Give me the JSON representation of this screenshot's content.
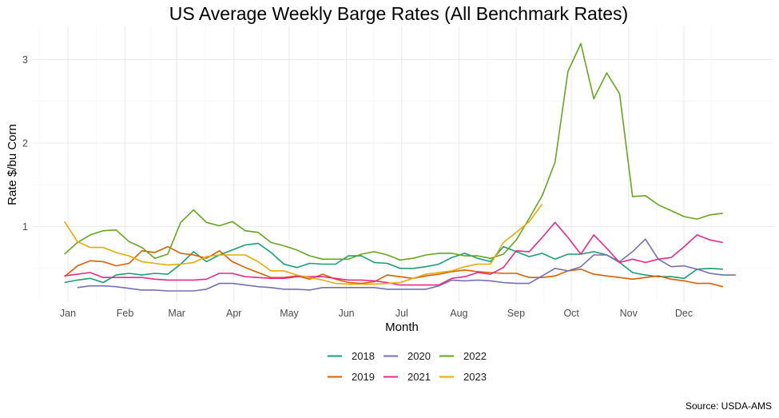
{
  "chart_data": {
    "type": "line",
    "title": "US Average Weekly Barge Rates (All Benchmark Rates)",
    "xlabel": "Month",
    "ylabel": "Rate $/bu Corn",
    "caption": "Source: USDA-AMS",
    "grid": true,
    "legend_position": "bottom",
    "x_unit": "day of year",
    "x": [
      0,
      7,
      14,
      21,
      28,
      35,
      42,
      49,
      56,
      63,
      70,
      77,
      84,
      91,
      98,
      105,
      112,
      119,
      126,
      133,
      140,
      147,
      154,
      161,
      168,
      175,
      182,
      189,
      196,
      203,
      210,
      217,
      224,
      231,
      238,
      245,
      252,
      259,
      266,
      273,
      280,
      287,
      294,
      301,
      308,
      315,
      322,
      329,
      336,
      343,
      350,
      357,
      364
    ],
    "xlim": [
      -20,
      384
    ],
    "ylim": [
      0.1,
      3.3
    ],
    "x_ticks": [
      {
        "label": "Jan",
        "day": 1
      },
      {
        "label": "Feb",
        "day": 32
      },
      {
        "label": "Mar",
        "day": 60
      },
      {
        "label": "Apr",
        "day": 91
      },
      {
        "label": "May",
        "day": 121
      },
      {
        "label": "Jun",
        "day": 152
      },
      {
        "label": "Jul",
        "day": 182
      },
      {
        "label": "Aug",
        "day": 213
      },
      {
        "label": "Sep",
        "day": 244
      },
      {
        "label": "Oct",
        "day": 274
      },
      {
        "label": "Nov",
        "day": 305
      },
      {
        "label": "Dec",
        "day": 335
      }
    ],
    "y_ticks": [
      {
        "label": "1",
        "value": 1
      },
      {
        "label": "2",
        "value": 2
      },
      {
        "label": "3",
        "value": 3
      }
    ],
    "y_minor": [
      0.5,
      1.5,
      2.5
    ],
    "series": [
      {
        "name": "2018",
        "color": "#1B9E77",
        "values": [
          0.33,
          0.36,
          0.38,
          0.33,
          0.42,
          0.44,
          0.42,
          0.44,
          0.43,
          0.55,
          0.7,
          0.58,
          0.66,
          0.72,
          0.78,
          0.8,
          0.69,
          0.55,
          0.51,
          0.56,
          0.55,
          0.55,
          0.65,
          0.65,
          0.57,
          0.56,
          0.5,
          0.5,
          0.52,
          0.55,
          0.63,
          0.68,
          0.62,
          0.58,
          0.76,
          0.7,
          0.64,
          0.68,
          0.61,
          0.67,
          0.67,
          0.7,
          0.66,
          0.57,
          0.45,
          0.42,
          0.4,
          0.4,
          0.38,
          0.49,
          0.5,
          0.49,
          null
        ]
      },
      {
        "name": "2019",
        "color": "#D95F02",
        "values": [
          0.4,
          0.53,
          0.59,
          0.58,
          0.53,
          0.56,
          0.71,
          0.69,
          0.76,
          0.68,
          0.66,
          0.62,
          0.71,
          0.58,
          0.51,
          0.45,
          0.39,
          0.39,
          0.41,
          0.37,
          0.43,
          0.37,
          0.33,
          0.32,
          0.34,
          0.42,
          0.4,
          0.38,
          0.41,
          0.43,
          0.46,
          0.48,
          0.46,
          0.45,
          0.44,
          0.44,
          0.39,
          0.39,
          0.41,
          0.47,
          0.49,
          0.43,
          0.41,
          0.39,
          0.37,
          0.39,
          0.41,
          0.37,
          0.35,
          0.32,
          0.32,
          0.28,
          null
        ]
      },
      {
        "name": "2020",
        "color": "#7570B3",
        "values": [
          null,
          0.27,
          0.29,
          0.29,
          0.28,
          0.26,
          0.24,
          0.24,
          0.23,
          0.23,
          0.23,
          0.25,
          0.32,
          0.32,
          0.3,
          0.28,
          0.27,
          0.25,
          0.25,
          0.24,
          0.27,
          0.27,
          0.27,
          0.27,
          0.27,
          0.25,
          0.25,
          0.25,
          0.25,
          0.29,
          0.36,
          0.35,
          0.36,
          0.35,
          0.33,
          0.32,
          0.32,
          0.41,
          0.5,
          0.47,
          0.52,
          0.66,
          0.66,
          0.58,
          0.7,
          0.85,
          0.61,
          0.52,
          0.53,
          0.49,
          0.44,
          0.42,
          0.42
        ]
      },
      {
        "name": "2021",
        "color": "#E7298A",
        "values": [
          0.41,
          0.43,
          0.45,
          0.39,
          0.39,
          0.39,
          0.39,
          0.37,
          0.36,
          0.36,
          0.36,
          0.37,
          0.44,
          0.44,
          0.4,
          0.39,
          0.38,
          0.38,
          0.4,
          0.4,
          0.4,
          0.38,
          0.36,
          0.36,
          0.35,
          0.33,
          0.3,
          0.3,
          0.3,
          0.3,
          0.38,
          0.4,
          0.45,
          0.43,
          0.51,
          0.71,
          0.7,
          0.87,
          1.05,
          0.87,
          0.67,
          0.9,
          0.74,
          0.57,
          0.61,
          0.57,
          0.61,
          0.63,
          0.76,
          0.9,
          0.84,
          0.81,
          null
        ]
      },
      {
        "name": "2022",
        "color": "#66A61E",
        "values": [
          0.67,
          0.81,
          0.9,
          0.95,
          0.96,
          0.82,
          0.75,
          0.62,
          0.67,
          1.05,
          1.2,
          1.05,
          1.01,
          1.06,
          0.95,
          0.93,
          0.81,
          0.77,
          0.72,
          0.65,
          0.61,
          0.61,
          0.61,
          0.67,
          0.7,
          0.66,
          0.6,
          0.62,
          0.66,
          0.68,
          0.68,
          0.65,
          0.65,
          0.62,
          0.67,
          0.84,
          1.1,
          1.37,
          1.77,
          2.86,
          3.19,
          2.53,
          2.84,
          2.59,
          1.36,
          1.37,
          1.26,
          1.19,
          1.12,
          1.09,
          1.14,
          1.16,
          null
        ]
      },
      {
        "name": "2023",
        "color": "#E6AB02",
        "values": [
          1.06,
          0.82,
          0.75,
          0.75,
          0.69,
          0.65,
          0.58,
          0.56,
          0.54,
          0.55,
          0.57,
          0.64,
          0.66,
          0.66,
          0.66,
          0.58,
          0.47,
          0.47,
          0.42,
          0.39,
          0.36,
          0.32,
          0.31,
          0.31,
          0.31,
          0.32,
          0.33,
          0.38,
          0.43,
          0.45,
          0.47,
          0.52,
          0.55,
          0.55,
          0.81,
          0.93,
          1.06,
          1.27,
          null,
          null,
          null,
          null,
          null,
          null,
          null,
          null,
          null,
          null,
          null,
          null,
          null,
          null,
          null
        ]
      }
    ]
  }
}
